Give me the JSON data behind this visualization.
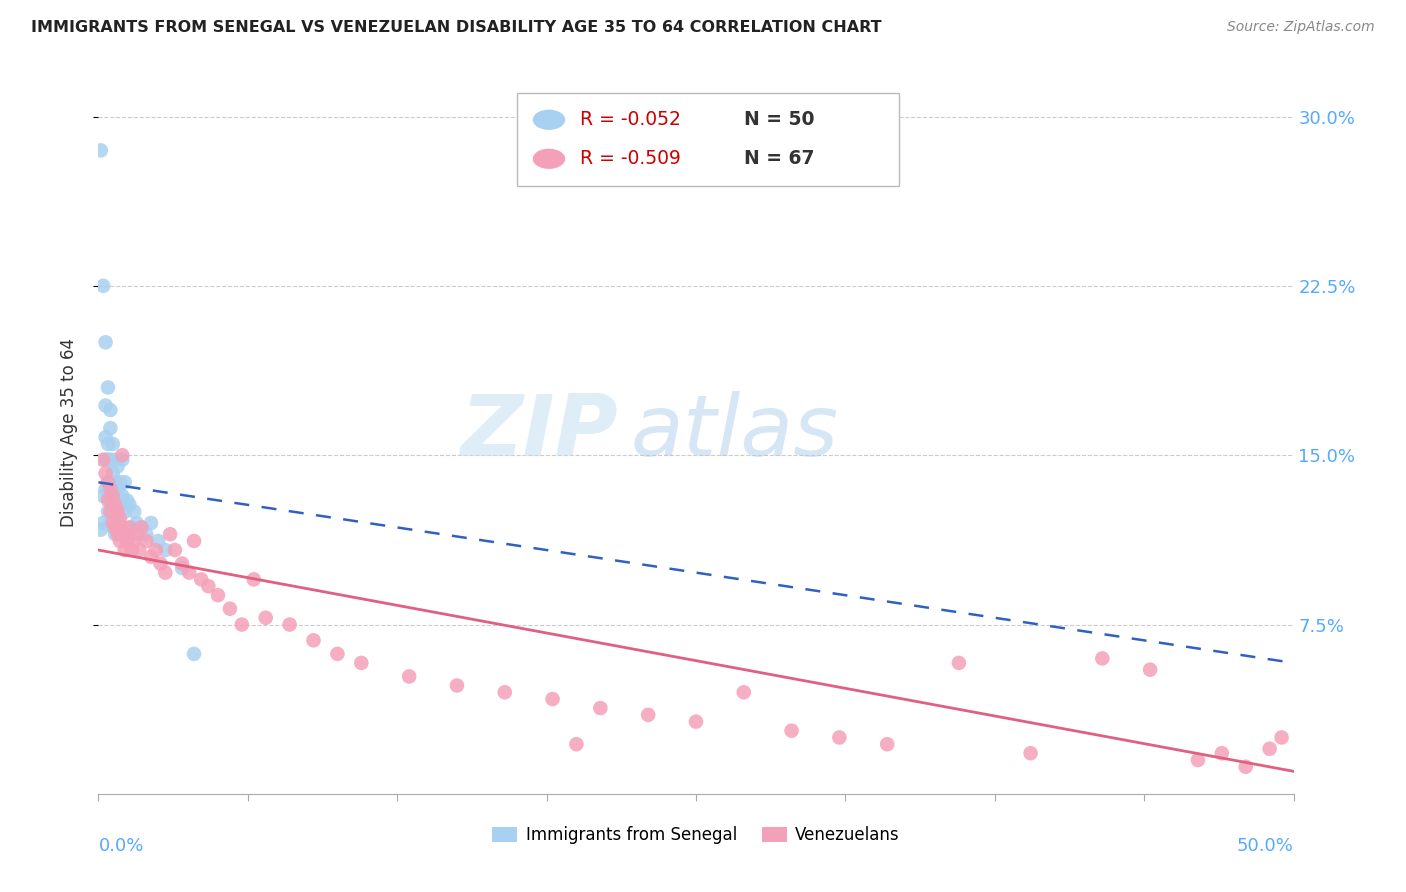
{
  "title": "IMMIGRANTS FROM SENEGAL VS VENEZUELAN DISABILITY AGE 35 TO 64 CORRELATION CHART",
  "source": "Source: ZipAtlas.com",
  "ylabel": "Disability Age 35 to 64",
  "watermark_zip": "ZIP",
  "watermark_atlas": "atlas",
  "senegal_label": "Immigrants from Senegal",
  "venezuelan_label": "Venezuelans",
  "legend_entry1_r": "R = -0.052",
  "legend_entry1_n": "N = 50",
  "legend_entry2_r": "R = -0.509",
  "legend_entry2_n": "N = 67",
  "senegal_color": "#a8d0f0",
  "venezuelan_color": "#f4a0b8",
  "trendline_senegal_color": "#3060c0",
  "trendline_venezuelan_color": "#e06080",
  "xlim": [
    0.0,
    0.5
  ],
  "ylim": [
    0.0,
    0.32
  ],
  "ytick_vals": [
    0.075,
    0.15,
    0.225,
    0.3
  ],
  "ytick_labels": [
    "7.5%",
    "15.0%",
    "22.5%",
    "30.0%"
  ],
  "axis_label_color": "#55aaff",
  "grid_color": "#cccccc",
  "trendline_senegal_y0": 0.138,
  "trendline_senegal_y1": 0.058,
  "trendline_venezuelan_y0": 0.108,
  "trendline_venezuelan_y1": 0.01,
  "senegal_x": [
    0.001,
    0.001,
    0.002,
    0.002,
    0.002,
    0.003,
    0.003,
    0.003,
    0.003,
    0.003,
    0.004,
    0.004,
    0.004,
    0.004,
    0.004,
    0.005,
    0.005,
    0.005,
    0.005,
    0.005,
    0.005,
    0.006,
    0.006,
    0.006,
    0.006,
    0.007,
    0.007,
    0.007,
    0.007,
    0.008,
    0.008,
    0.008,
    0.009,
    0.009,
    0.01,
    0.01,
    0.011,
    0.011,
    0.012,
    0.013,
    0.014,
    0.015,
    0.016,
    0.018,
    0.02,
    0.022,
    0.025,
    0.028,
    0.035,
    0.04
  ],
  "senegal_y": [
    0.285,
    0.117,
    0.225,
    0.132,
    0.12,
    0.2,
    0.172,
    0.158,
    0.148,
    0.135,
    0.18,
    0.155,
    0.148,
    0.138,
    0.125,
    0.17,
    0.162,
    0.148,
    0.138,
    0.13,
    0.12,
    0.155,
    0.142,
    0.132,
    0.118,
    0.148,
    0.138,
    0.128,
    0.115,
    0.145,
    0.135,
    0.122,
    0.138,
    0.128,
    0.148,
    0.132,
    0.138,
    0.125,
    0.13,
    0.128,
    0.118,
    0.125,
    0.12,
    0.118,
    0.115,
    0.12,
    0.112,
    0.108,
    0.1,
    0.062
  ],
  "venezuelan_x": [
    0.002,
    0.003,
    0.004,
    0.004,
    0.005,
    0.005,
    0.006,
    0.006,
    0.007,
    0.007,
    0.008,
    0.008,
    0.009,
    0.009,
    0.01,
    0.01,
    0.011,
    0.011,
    0.012,
    0.013,
    0.014,
    0.015,
    0.016,
    0.017,
    0.018,
    0.02,
    0.022,
    0.024,
    0.026,
    0.028,
    0.03,
    0.032,
    0.035,
    0.038,
    0.04,
    0.043,
    0.046,
    0.05,
    0.055,
    0.06,
    0.065,
    0.07,
    0.08,
    0.09,
    0.1,
    0.11,
    0.13,
    0.15,
    0.17,
    0.19,
    0.21,
    0.23,
    0.25,
    0.27,
    0.29,
    0.31,
    0.33,
    0.36,
    0.39,
    0.42,
    0.44,
    0.46,
    0.47,
    0.48,
    0.49,
    0.495,
    0.2
  ],
  "venezuelan_y": [
    0.148,
    0.142,
    0.138,
    0.13,
    0.135,
    0.125,
    0.132,
    0.12,
    0.128,
    0.118,
    0.125,
    0.115,
    0.122,
    0.112,
    0.15,
    0.118,
    0.115,
    0.108,
    0.112,
    0.118,
    0.108,
    0.112,
    0.115,
    0.108,
    0.118,
    0.112,
    0.105,
    0.108,
    0.102,
    0.098,
    0.115,
    0.108,
    0.102,
    0.098,
    0.112,
    0.095,
    0.092,
    0.088,
    0.082,
    0.075,
    0.095,
    0.078,
    0.075,
    0.068,
    0.062,
    0.058,
    0.052,
    0.048,
    0.045,
    0.042,
    0.038,
    0.035,
    0.032,
    0.045,
    0.028,
    0.025,
    0.022,
    0.058,
    0.018,
    0.06,
    0.055,
    0.015,
    0.018,
    0.012,
    0.02,
    0.025,
    0.022
  ]
}
